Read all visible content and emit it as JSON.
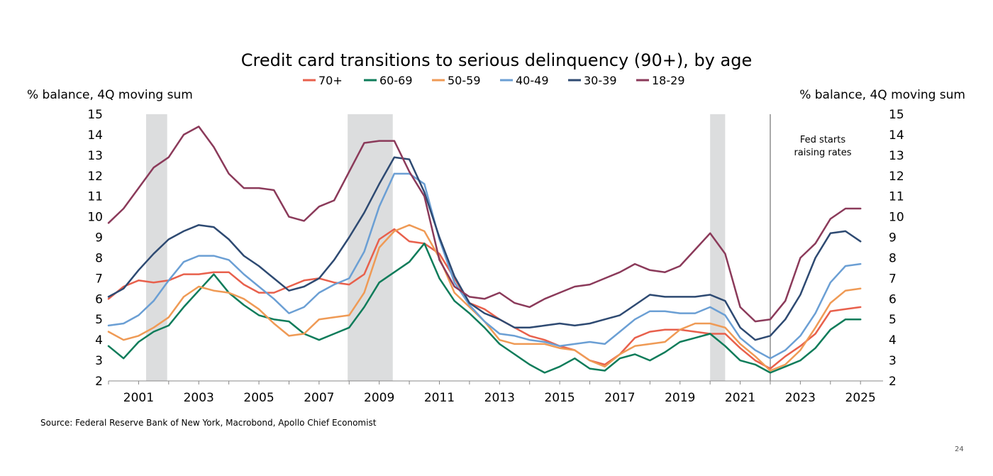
{
  "chart_data": {
    "type": "line",
    "title": "Credit card transitions to serious delinquency (90+), by age",
    "ylabel_left": "% balance, 4Q moving sum",
    "ylabel_right": "% balance, 4Q moving sum",
    "ylim": [
      2,
      15
    ],
    "yticks": [
      2,
      3,
      4,
      5,
      6,
      7,
      8,
      9,
      10,
      11,
      12,
      13,
      14,
      15
    ],
    "xlim": [
      2000.0,
      2025.75
    ],
    "xticks": [
      "2001",
      "2003",
      "2005",
      "2007",
      "2009",
      "2011",
      "2013",
      "2015",
      "2017",
      "2019",
      "2021",
      "2023",
      "2025"
    ],
    "legend_position": "top-center",
    "grid": false,
    "recessions": [
      [
        2001.25,
        2001.95
      ],
      [
        2007.95,
        2009.45
      ],
      [
        2020.0,
        2020.5
      ]
    ],
    "vline": {
      "x": 2022.0,
      "label_line1": "Fed starts",
      "label_line2": "raising rates"
    },
    "series": [
      {
        "name": "70+",
        "color": "#E8604C",
        "x": [
          2000.0,
          2000.5,
          2001.0,
          2001.5,
          2002.0,
          2002.5,
          2003.0,
          2003.5,
          2004.0,
          2004.5,
          2005.0,
          2005.5,
          2006.0,
          2006.5,
          2007.0,
          2007.5,
          2008.0,
          2008.5,
          2009.0,
          2009.5,
          2010.0,
          2010.5,
          2011.0,
          2011.5,
          2012.0,
          2012.5,
          2013.0,
          2013.5,
          2014.0,
          2014.5,
          2015.0,
          2015.5,
          2016.0,
          2016.5,
          2017.0,
          2017.5,
          2018.0,
          2018.5,
          2019.0,
          2019.5,
          2020.0,
          2020.5,
          2021.0,
          2021.5,
          2022.0,
          2022.5,
          2023.0,
          2023.5,
          2024.0,
          2024.5,
          2025.0
        ],
        "values": [
          6.0,
          6.6,
          6.9,
          6.8,
          6.9,
          7.2,
          7.2,
          7.3,
          7.3,
          6.7,
          6.3,
          6.3,
          6.6,
          6.9,
          7.0,
          6.8,
          6.7,
          7.2,
          8.9,
          9.4,
          8.8,
          8.7,
          8.2,
          7.0,
          5.8,
          5.5,
          5.0,
          4.6,
          4.2,
          4.0,
          3.7,
          3.5,
          3.0,
          2.8,
          3.3,
          4.1,
          4.4,
          4.5,
          4.5,
          4.4,
          4.3,
          4.3,
          3.6,
          3.0,
          2.6,
          3.2,
          3.7,
          4.3,
          5.4,
          5.5,
          5.6
        ]
      },
      {
        "name": "60-69",
        "color": "#0E7C5A",
        "x": [
          2000.0,
          2000.5,
          2001.0,
          2001.5,
          2002.0,
          2002.5,
          2003.0,
          2003.5,
          2004.0,
          2004.5,
          2005.0,
          2005.5,
          2006.0,
          2006.5,
          2007.0,
          2007.5,
          2008.0,
          2008.5,
          2009.0,
          2009.5,
          2010.0,
          2010.5,
          2011.0,
          2011.5,
          2012.0,
          2012.5,
          2013.0,
          2013.5,
          2014.0,
          2014.5,
          2015.0,
          2015.5,
          2016.0,
          2016.5,
          2017.0,
          2017.5,
          2018.0,
          2018.5,
          2019.0,
          2019.5,
          2020.0,
          2020.5,
          2021.0,
          2021.5,
          2022.0,
          2022.5,
          2023.0,
          2023.5,
          2024.0,
          2024.5,
          2025.0
        ],
        "values": [
          3.7,
          3.1,
          3.9,
          4.4,
          4.7,
          5.6,
          6.4,
          7.2,
          6.3,
          5.7,
          5.2,
          5.0,
          4.9,
          4.3,
          4.0,
          4.3,
          4.6,
          5.6,
          6.8,
          7.3,
          7.8,
          8.7,
          7.0,
          5.9,
          5.3,
          4.6,
          3.8,
          3.3,
          2.8,
          2.4,
          2.7,
          3.1,
          2.6,
          2.5,
          3.1,
          3.3,
          3.0,
          3.4,
          3.9,
          4.1,
          4.3,
          3.7,
          3.0,
          2.8,
          2.4,
          2.7,
          3.0,
          3.6,
          4.5,
          5.0,
          5.0
        ]
      },
      {
        "name": "50-59",
        "color": "#EF9A55",
        "x": [
          2000.0,
          2000.5,
          2001.0,
          2001.5,
          2002.0,
          2002.5,
          2003.0,
          2003.5,
          2004.0,
          2004.5,
          2005.0,
          2005.5,
          2006.0,
          2006.5,
          2007.0,
          2007.5,
          2008.0,
          2008.5,
          2009.0,
          2009.5,
          2010.0,
          2010.5,
          2011.0,
          2011.5,
          2012.0,
          2012.5,
          2013.0,
          2013.5,
          2014.0,
          2014.5,
          2015.0,
          2015.5,
          2016.0,
          2016.5,
          2017.0,
          2017.5,
          2018.0,
          2018.5,
          2019.0,
          2019.5,
          2020.0,
          2020.5,
          2021.0,
          2021.5,
          2022.0,
          2022.5,
          2023.0,
          2023.5,
          2024.0,
          2024.5,
          2025.0
        ],
        "values": [
          4.4,
          4.0,
          4.2,
          4.6,
          5.1,
          6.1,
          6.6,
          6.4,
          6.3,
          6.0,
          5.5,
          4.8,
          4.2,
          4.3,
          5.0,
          5.1,
          5.2,
          6.3,
          8.5,
          9.3,
          9.6,
          9.3,
          8.0,
          6.3,
          5.6,
          4.9,
          4.0,
          3.8,
          3.8,
          3.8,
          3.6,
          3.5,
          3.0,
          2.7,
          3.3,
          3.7,
          3.8,
          3.9,
          4.5,
          4.8,
          4.8,
          4.6,
          3.8,
          3.2,
          2.5,
          2.8,
          3.5,
          4.6,
          5.8,
          6.4,
          6.5
        ]
      },
      {
        "name": "40-49",
        "color": "#6B9FD4",
        "x": [
          2000.0,
          2000.5,
          2001.0,
          2001.5,
          2002.0,
          2002.5,
          2003.0,
          2003.5,
          2004.0,
          2004.5,
          2005.0,
          2005.5,
          2006.0,
          2006.5,
          2007.0,
          2007.5,
          2008.0,
          2008.5,
          2009.0,
          2009.5,
          2010.0,
          2010.5,
          2011.0,
          2011.5,
          2012.0,
          2012.5,
          2013.0,
          2013.5,
          2014.0,
          2014.5,
          2015.0,
          2015.5,
          2016.0,
          2016.5,
          2017.0,
          2017.5,
          2018.0,
          2018.5,
          2019.0,
          2019.5,
          2020.0,
          2020.5,
          2021.0,
          2021.5,
          2022.0,
          2022.5,
          2023.0,
          2023.5,
          2024.0,
          2024.5,
          2025.0
        ],
        "values": [
          4.7,
          4.8,
          5.2,
          5.9,
          6.9,
          7.8,
          8.1,
          8.1,
          7.9,
          7.2,
          6.6,
          6.0,
          5.3,
          5.6,
          6.3,
          6.7,
          7.0,
          8.3,
          10.5,
          12.1,
          12.1,
          11.6,
          8.9,
          6.8,
          5.7,
          4.9,
          4.3,
          4.2,
          4.0,
          3.9,
          3.7,
          3.8,
          3.9,
          3.8,
          4.4,
          5.0,
          5.4,
          5.4,
          5.3,
          5.3,
          5.6,
          5.2,
          4.1,
          3.5,
          3.1,
          3.5,
          4.2,
          5.3,
          6.8,
          7.6,
          7.7
        ]
      },
      {
        "name": "30-39",
        "color": "#2E4A72",
        "x": [
          2000.0,
          2000.5,
          2001.0,
          2001.5,
          2002.0,
          2002.5,
          2003.0,
          2003.5,
          2004.0,
          2004.5,
          2005.0,
          2005.5,
          2006.0,
          2006.5,
          2007.0,
          2007.5,
          2008.0,
          2008.5,
          2009.0,
          2009.5,
          2010.0,
          2010.5,
          2011.0,
          2011.5,
          2012.0,
          2012.5,
          2013.0,
          2013.5,
          2014.0,
          2014.5,
          2015.0,
          2015.5,
          2016.0,
          2016.5,
          2017.0,
          2017.5,
          2018.0,
          2018.5,
          2019.0,
          2019.5,
          2020.0,
          2020.5,
          2021.0,
          2021.5,
          2022.0,
          2022.5,
          2023.0,
          2023.5,
          2024.0,
          2024.5,
          2025.0
        ],
        "values": [
          6.1,
          6.5,
          7.4,
          8.2,
          8.9,
          9.3,
          9.6,
          9.5,
          8.9,
          8.1,
          7.6,
          7.0,
          6.4,
          6.6,
          7.0,
          7.9,
          9.0,
          10.2,
          11.6,
          12.9,
          12.8,
          11.2,
          9.0,
          7.1,
          5.8,
          5.3,
          5.0,
          4.6,
          4.6,
          4.7,
          4.8,
          4.7,
          4.8,
          5.0,
          5.2,
          5.7,
          6.2,
          6.1,
          6.1,
          6.1,
          6.2,
          5.9,
          4.6,
          4.0,
          4.2,
          5.0,
          6.2,
          8.0,
          9.2,
          9.3,
          8.8
        ]
      },
      {
        "name": "18-29",
        "color": "#8B3A5A",
        "x": [
          2000.0,
          2000.5,
          2001.0,
          2001.5,
          2002.0,
          2002.5,
          2003.0,
          2003.5,
          2004.0,
          2004.5,
          2005.0,
          2005.5,
          2006.0,
          2006.5,
          2007.0,
          2007.5,
          2008.0,
          2008.5,
          2009.0,
          2009.5,
          2010.0,
          2010.5,
          2011.0,
          2011.5,
          2012.0,
          2012.5,
          2013.0,
          2013.5,
          2014.0,
          2014.5,
          2015.0,
          2015.5,
          2016.0,
          2016.5,
          2017.0,
          2017.5,
          2018.0,
          2018.5,
          2019.0,
          2019.5,
          2020.0,
          2020.5,
          2021.0,
          2021.5,
          2022.0,
          2022.5,
          2023.0,
          2023.5,
          2024.0,
          2024.5,
          2025.0
        ],
        "values": [
          9.7,
          10.4,
          11.4,
          12.4,
          12.9,
          14.0,
          14.4,
          13.4,
          12.1,
          11.4,
          11.4,
          11.3,
          10.0,
          9.8,
          10.5,
          10.8,
          12.2,
          13.6,
          13.7,
          13.7,
          12.2,
          11.0,
          7.9,
          6.6,
          6.1,
          6.0,
          6.3,
          5.8,
          5.6,
          6.0,
          6.3,
          6.6,
          6.7,
          7.0,
          7.3,
          7.7,
          7.4,
          7.3,
          7.6,
          8.4,
          9.2,
          8.2,
          5.6,
          4.9,
          5.0,
          5.9,
          8.0,
          8.7,
          9.9,
          10.4,
          10.4
        ]
      }
    ]
  },
  "source": "Source: Federal Reserve Bank of New York, Macrobond, Apollo Chief Economist",
  "page_number": "24"
}
